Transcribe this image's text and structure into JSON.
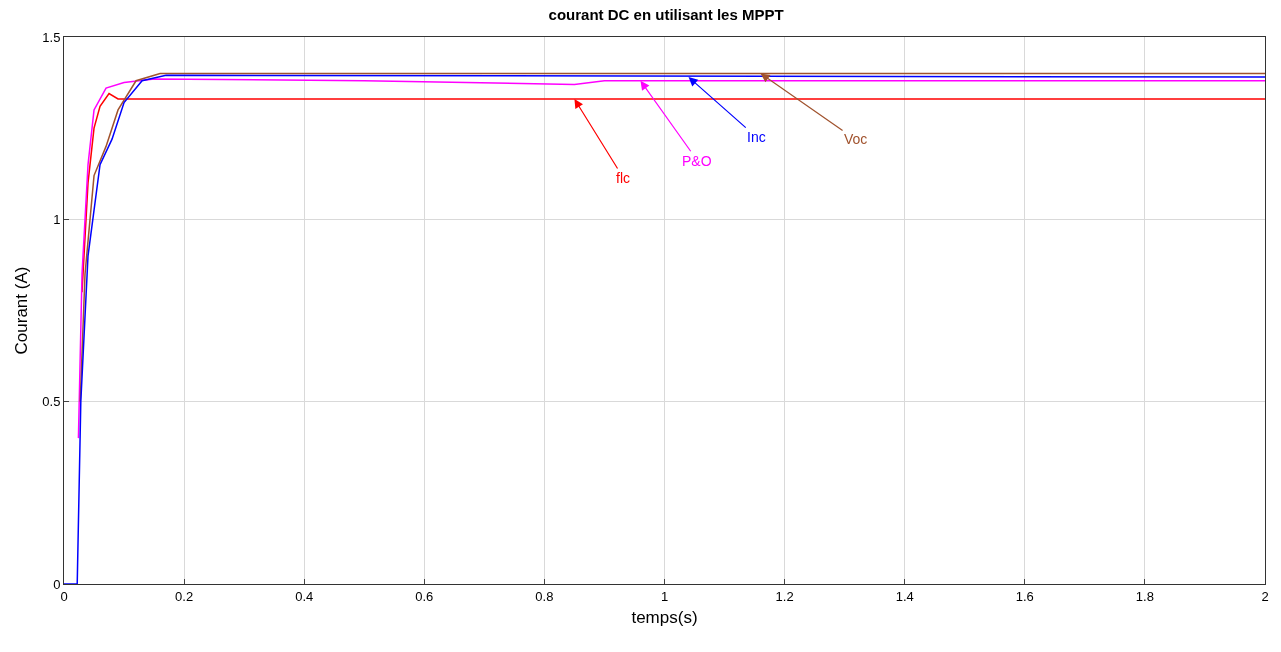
{
  "chart_data": {
    "type": "line",
    "title": "courant DC en utilisant les MPPT",
    "xlabel": "temps(s)",
    "ylabel": "Courant (A)",
    "series": [
      {
        "color": "#ff0000",
        "x": [
          0.03,
          0.04,
          0.05,
          0.06,
          0.075,
          0.09,
          2
        ],
        "values": [
          0.8,
          1.1,
          1.25,
          1.31,
          1.345,
          1.33,
          1.33
        ]
      },
      {
        "color": "#ff00ff",
        "x": [
          0.024,
          0.03,
          0.04,
          0.05,
          0.07,
          0.1,
          0.15,
          0.5,
          0.85,
          0.9,
          2
        ],
        "values": [
          0.4,
          0.85,
          1.15,
          1.3,
          1.36,
          1.375,
          1.385,
          1.38,
          1.37,
          1.38,
          1.38
        ]
      },
      {
        "color": "#a0522d",
        "x": [
          0.027,
          0.035,
          0.05,
          0.07,
          0.09,
          0.12,
          0.16,
          2
        ],
        "values": [
          0.5,
          0.85,
          1.12,
          1.2,
          1.3,
          1.38,
          1.4,
          1.4
        ]
      },
      {
        "color": "#0000ff",
        "x": [
          0,
          0.022,
          0.028,
          0.04,
          0.06,
          0.08,
          0.1,
          0.13,
          0.17,
          2
        ],
        "values": [
          0,
          0,
          0.5,
          0.9,
          1.15,
          1.22,
          1.32,
          1.38,
          1.395,
          1.39
        ]
      }
    ],
    "annotations": [
      {
        "text": "flc",
        "x": 0.85,
        "y": 1.33
      },
      {
        "text": "P&O",
        "x": 0.96,
        "y": 1.38
      },
      {
        "text": "Voc",
        "x": 1.16,
        "y": 1.4
      },
      {
        "text": "Inc",
        "x": 1.04,
        "y": 1.39
      }
    ],
    "xlim": [
      0,
      2
    ],
    "xticks": [
      0,
      0.2,
      0.4,
      0.6,
      0.8,
      1,
      1.2,
      1.4,
      1.6,
      1.8,
      2
    ],
    "ylim": [
      0,
      1.5
    ],
    "yticks": [
      0,
      0.5,
      1,
      1.5
    ],
    "grid": true,
    "line_style": "solid",
    "marker": "none"
  }
}
